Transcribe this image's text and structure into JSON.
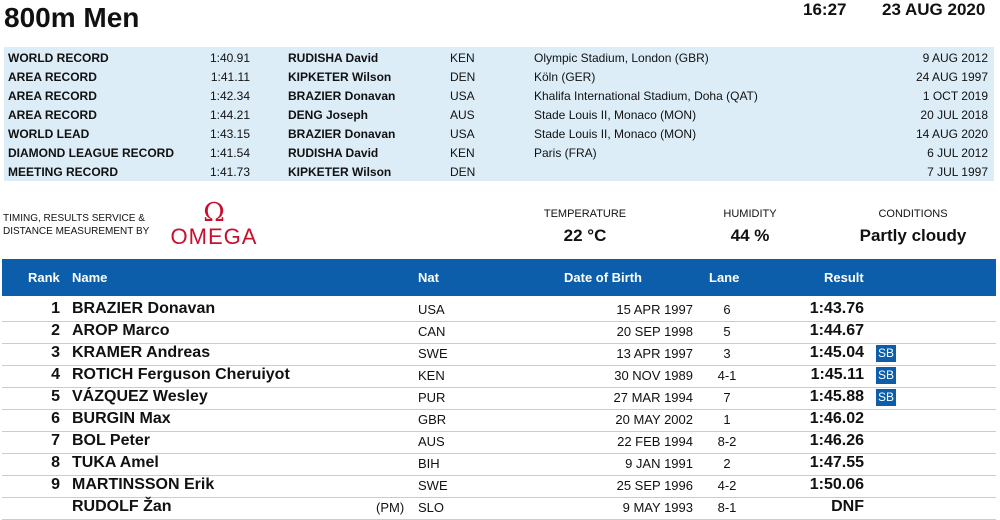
{
  "header": {
    "title": "800m Men",
    "time": "16:27",
    "date": "23 AUG 2020"
  },
  "records": [
    {
      "type": "WORLD RECORD",
      "time": "1:40.91",
      "name": "RUDISHA David",
      "nat": "KEN",
      "venue": "Olympic Stadium, London (GBR)",
      "date": "9 AUG 2012"
    },
    {
      "type": "AREA RECORD",
      "time": "1:41.11",
      "name": "KIPKETER Wilson",
      "nat": "DEN",
      "venue": "Köln (GER)",
      "date": "24 AUG 1997"
    },
    {
      "type": "AREA RECORD",
      "time": "1:42.34",
      "name": "BRAZIER Donavan",
      "nat": "USA",
      "venue": "Khalifa International Stadium, Doha (QAT)",
      "date": "1 OCT 2019"
    },
    {
      "type": "AREA RECORD",
      "time": "1:44.21",
      "name": "DENG Joseph",
      "nat": "AUS",
      "venue": "Stade Louis II, Monaco (MON)",
      "date": "20 JUL 2018"
    },
    {
      "type": "WORLD LEAD",
      "time": "1:43.15",
      "name": "BRAZIER Donavan",
      "nat": "USA",
      "venue": "Stade Louis II, Monaco (MON)",
      "date": "14 AUG 2020"
    },
    {
      "type": "DIAMOND LEAGUE RECORD",
      "time": "1:41.54",
      "name": "RUDISHA David",
      "nat": "KEN",
      "venue": "Paris (FRA)",
      "date": "6 JUL 2012"
    },
    {
      "type": "MEETING RECORD",
      "time": "1:41.73",
      "name": "KIPKETER Wilson",
      "nat": "DEN",
      "venue": "",
      "date": "7 JUL 1997"
    }
  ],
  "sponsor": {
    "line1": "TIMING, RESULTS SERVICE &",
    "line2": "DISTANCE MEASUREMENT BY",
    "logo": "OMEGA",
    "logo_symbol": "Ω",
    "color": "#c8102e"
  },
  "weather": {
    "temp_label": "TEMPERATURE",
    "temp": "22 °C",
    "hum_label": "HUMIDITY",
    "hum": "44 %",
    "cond_label": "CONDITIONS",
    "cond": "Partly cloudy"
  },
  "table": {
    "headers": {
      "rank": "Rank",
      "name": "Name",
      "nat": "Nat",
      "dob": "Date of Birth",
      "lane": "Lane",
      "result": "Result"
    },
    "accent": "#0c5eab",
    "rows": [
      {
        "rank": "1",
        "name": "BRAZIER Donavan",
        "pm": "",
        "nat": "USA",
        "dob": "15 APR 1997",
        "lane": "6",
        "result": "1:43.76",
        "badge": ""
      },
      {
        "rank": "2",
        "name": "AROP Marco",
        "pm": "",
        "nat": "CAN",
        "dob": "20 SEP 1998",
        "lane": "5",
        "result": "1:44.67",
        "badge": ""
      },
      {
        "rank": "3",
        "name": "KRAMER Andreas",
        "pm": "",
        "nat": "SWE",
        "dob": "13 APR 1997",
        "lane": "3",
        "result": "1:45.04",
        "badge": "SB"
      },
      {
        "rank": "4",
        "name": "ROTICH Ferguson Cheruiyot",
        "pm": "",
        "nat": "KEN",
        "dob": "30 NOV 1989",
        "lane": "4-1",
        "result": "1:45.11",
        "badge": "SB"
      },
      {
        "rank": "5",
        "name": "VÁZQUEZ Wesley",
        "pm": "",
        "nat": "PUR",
        "dob": "27 MAR 1994",
        "lane": "7",
        "result": "1:45.88",
        "badge": "SB"
      },
      {
        "rank": "6",
        "name": "BURGIN Max",
        "pm": "",
        "nat": "GBR",
        "dob": "20 MAY 2002",
        "lane": "1",
        "result": "1:46.02",
        "badge": ""
      },
      {
        "rank": "7",
        "name": "BOL Peter",
        "pm": "",
        "nat": "AUS",
        "dob": "22 FEB 1994",
        "lane": "8-2",
        "result": "1:46.26",
        "badge": ""
      },
      {
        "rank": "8",
        "name": "TUKA Amel",
        "pm": "",
        "nat": "BIH",
        "dob": "9 JAN 1991",
        "lane": "2",
        "result": "1:47.55",
        "badge": ""
      },
      {
        "rank": "9",
        "name": "MARTINSSON Erik",
        "pm": "",
        "nat": "SWE",
        "dob": "25 SEP 1996",
        "lane": "4-2",
        "result": "1:50.06",
        "badge": ""
      },
      {
        "rank": "",
        "name": "RUDOLF Žan",
        "pm": "(PM)",
        "nat": "SLO",
        "dob": "9 MAY 1993",
        "lane": "8-1",
        "result": "DNF",
        "badge": ""
      }
    ]
  }
}
